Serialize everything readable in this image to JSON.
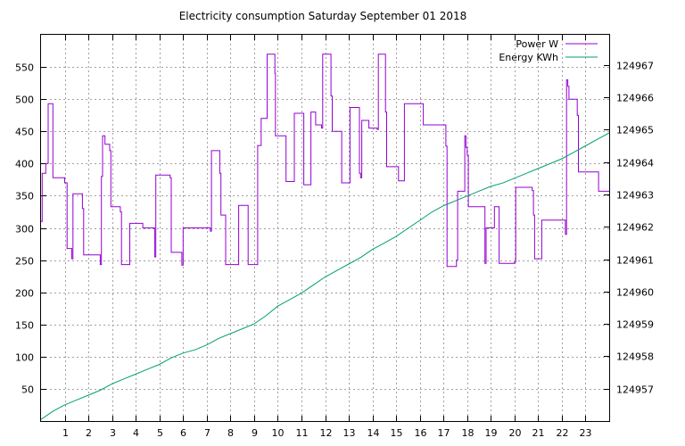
{
  "chart_data": {
    "type": "line",
    "title": "Electricity consumption Saturday September 01 2018",
    "x_ticks": [
      1,
      2,
      3,
      4,
      5,
      6,
      7,
      8,
      9,
      10,
      11,
      12,
      13,
      14,
      15,
      16,
      17,
      18,
      19,
      20,
      21,
      22,
      23
    ],
    "xlim": [
      0,
      24
    ],
    "y_left_ticks": [
      50,
      100,
      150,
      200,
      250,
      300,
      350,
      400,
      450,
      500,
      550
    ],
    "ylim_left": [
      0,
      600
    ],
    "y_right_ticks": [
      124957,
      124958,
      124959,
      124960,
      124961,
      124962,
      124963,
      124964,
      124965,
      124966,
      124967
    ],
    "ylim_right": [
      124956,
      124967.93
    ],
    "grid": true,
    "legend_position": "top-right",
    "series": [
      {
        "name": "Power W",
        "axis": "left",
        "color": "#9400d3",
        "step": true,
        "points": [
          [
            0.0,
            310
          ],
          [
            0.05,
            385
          ],
          [
            0.2,
            400
          ],
          [
            0.3,
            493
          ],
          [
            0.5,
            378
          ],
          [
            0.95,
            378
          ],
          [
            1.0,
            370
          ],
          [
            1.1,
            268
          ],
          [
            1.3,
            252
          ],
          [
            1.35,
            353
          ],
          [
            1.7,
            353
          ],
          [
            1.75,
            330
          ],
          [
            1.8,
            258
          ],
          [
            2.5,
            258
          ],
          [
            2.5,
            243
          ],
          [
            2.55,
            380
          ],
          [
            2.6,
            443
          ],
          [
            2.7,
            430
          ],
          [
            2.9,
            420
          ],
          [
            2.95,
            333
          ],
          [
            3.3,
            333
          ],
          [
            3.35,
            325
          ],
          [
            3.4,
            243
          ],
          [
            3.7,
            243
          ],
          [
            3.75,
            307
          ],
          [
            4.2,
            307
          ],
          [
            4.3,
            300
          ],
          [
            4.75,
            300
          ],
          [
            4.8,
            255
          ],
          [
            4.85,
            382
          ],
          [
            5.4,
            382
          ],
          [
            5.45,
            378
          ],
          [
            5.5,
            262
          ],
          [
            5.9,
            262
          ],
          [
            5.95,
            242
          ],
          [
            6.0,
            300
          ],
          [
            7.1,
            300
          ],
          [
            7.15,
            295
          ],
          [
            7.2,
            420
          ],
          [
            7.5,
            420
          ],
          [
            7.55,
            385
          ],
          [
            7.6,
            320
          ],
          [
            7.75,
            320
          ],
          [
            7.8,
            243
          ],
          [
            8.3,
            243
          ],
          [
            8.35,
            335
          ],
          [
            8.7,
            335
          ],
          [
            8.75,
            243
          ],
          [
            9.1,
            243
          ],
          [
            9.15,
            428
          ],
          [
            9.3,
            470
          ],
          [
            9.5,
            470
          ],
          [
            9.55,
            570
          ],
          [
            9.85,
            570
          ],
          [
            9.88,
            540
          ],
          [
            9.9,
            443
          ],
          [
            10.3,
            443
          ],
          [
            10.35,
            372
          ],
          [
            10.65,
            372
          ],
          [
            10.7,
            478
          ],
          [
            11.05,
            478
          ],
          [
            11.1,
            367
          ],
          [
            11.35,
            367
          ],
          [
            11.4,
            480
          ],
          [
            11.55,
            480
          ],
          [
            11.6,
            460
          ],
          [
            11.8,
            460
          ],
          [
            11.85,
            455
          ],
          [
            11.9,
            570
          ],
          [
            12.2,
            570
          ],
          [
            12.25,
            505
          ],
          [
            12.3,
            450
          ],
          [
            12.65,
            450
          ],
          [
            12.7,
            370
          ],
          [
            13.0,
            370
          ],
          [
            13.05,
            487
          ],
          [
            13.4,
            487
          ],
          [
            13.45,
            385
          ],
          [
            13.5,
            378
          ],
          [
            13.55,
            467
          ],
          [
            13.8,
            467
          ],
          [
            13.85,
            455
          ],
          [
            14.15,
            455
          ],
          [
            14.2,
            453
          ],
          [
            14.25,
            570
          ],
          [
            14.5,
            570
          ],
          [
            14.55,
            480
          ],
          [
            14.6,
            395
          ],
          [
            15.05,
            395
          ],
          [
            15.1,
            373
          ],
          [
            15.3,
            373
          ],
          [
            15.35,
            493
          ],
          [
            16.1,
            493
          ],
          [
            16.15,
            460
          ],
          [
            17.05,
            460
          ],
          [
            17.1,
            427
          ],
          [
            17.15,
            240
          ],
          [
            17.5,
            240
          ],
          [
            17.55,
            250
          ],
          [
            17.6,
            357
          ],
          [
            17.85,
            357
          ],
          [
            17.9,
            443
          ],
          [
            17.95,
            425
          ],
          [
            18.0,
            413
          ],
          [
            18.05,
            333
          ],
          [
            18.7,
            333
          ],
          [
            18.75,
            245
          ],
          [
            18.8,
            300
          ],
          [
            19.1,
            300
          ],
          [
            19.15,
            333
          ],
          [
            19.3,
            333
          ],
          [
            19.35,
            245
          ],
          [
            19.95,
            245
          ],
          [
            20.0,
            247
          ],
          [
            20.05,
            363
          ],
          [
            20.7,
            363
          ],
          [
            20.75,
            358
          ],
          [
            20.8,
            320
          ],
          [
            20.85,
            252
          ],
          [
            21.1,
            252
          ],
          [
            21.15,
            312
          ],
          [
            22.1,
            312
          ],
          [
            22.15,
            290
          ],
          [
            22.2,
            530
          ],
          [
            22.25,
            520
          ],
          [
            22.3,
            500
          ],
          [
            22.6,
            500
          ],
          [
            22.65,
            475
          ],
          [
            22.7,
            387
          ],
          [
            23.5,
            387
          ],
          [
            23.55,
            357
          ],
          [
            24.0,
            357
          ]
        ]
      },
      {
        "name": "Energy KWh",
        "axis": "right",
        "color": "#009e73",
        "step": false,
        "points": [
          [
            0.0,
            124956.05
          ],
          [
            0.5,
            124956.3
          ],
          [
            1.0,
            124956.5
          ],
          [
            1.5,
            124956.65
          ],
          [
            2.0,
            124956.8
          ],
          [
            2.5,
            124956.95
          ],
          [
            3.0,
            124957.15
          ],
          [
            3.5,
            124957.3
          ],
          [
            4.0,
            124957.45
          ],
          [
            4.5,
            124957.6
          ],
          [
            5.0,
            124957.75
          ],
          [
            5.5,
            124957.95
          ],
          [
            6.0,
            124958.1
          ],
          [
            6.5,
            124958.2
          ],
          [
            7.0,
            124958.35
          ],
          [
            7.5,
            124958.55
          ],
          [
            8.0,
            124958.7
          ],
          [
            8.5,
            124958.85
          ],
          [
            9.0,
            124959.0
          ],
          [
            9.5,
            124959.25
          ],
          [
            10.0,
            124959.55
          ],
          [
            10.5,
            124959.75
          ],
          [
            11.0,
            124959.95
          ],
          [
            11.5,
            124960.2
          ],
          [
            12.0,
            124960.45
          ],
          [
            12.5,
            124960.65
          ],
          [
            13.0,
            124960.85
          ],
          [
            13.5,
            124961.05
          ],
          [
            14.0,
            124961.3
          ],
          [
            14.5,
            124961.5
          ],
          [
            15.0,
            124961.7
          ],
          [
            15.5,
            124961.95
          ],
          [
            16.0,
            124962.2
          ],
          [
            16.5,
            124962.45
          ],
          [
            17.0,
            124962.65
          ],
          [
            17.5,
            124962.8
          ],
          [
            18.0,
            124962.95
          ],
          [
            18.5,
            124963.1
          ],
          [
            19.0,
            124963.25
          ],
          [
            19.5,
            124963.35
          ],
          [
            20.0,
            124963.5
          ],
          [
            20.5,
            124963.65
          ],
          [
            21.0,
            124963.8
          ],
          [
            21.5,
            124963.95
          ],
          [
            22.0,
            124964.1
          ],
          [
            22.5,
            124964.3
          ],
          [
            23.0,
            124964.5
          ],
          [
            23.5,
            124964.7
          ],
          [
            24.0,
            124964.9
          ]
        ]
      }
    ]
  }
}
